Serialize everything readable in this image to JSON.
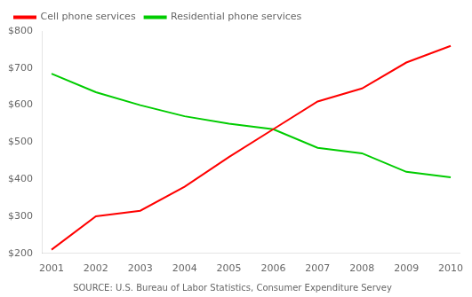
{
  "chart_data": {
    "type": "line",
    "x": [
      2001,
      2002,
      2003,
      2004,
      2005,
      2006,
      2007,
      2008,
      2009,
      2010
    ],
    "series": [
      {
        "name": "Cell phone services",
        "color": "#ff0000",
        "values": [
          210,
          300,
          315,
          380,
          460,
          535,
          610,
          645,
          715,
          760
        ]
      },
      {
        "name": "Residential phone services",
        "color": "#00cc00",
        "values": [
          685,
          635,
          600,
          570,
          550,
          535,
          485,
          470,
          420,
          405
        ]
      }
    ],
    "xlim": [
      2000.8,
      2010.2
    ],
    "xticks": [
      2001,
      2002,
      2003,
      2004,
      2005,
      2006,
      2007,
      2008,
      2009,
      2010
    ],
    "ylim": [
      200,
      800
    ],
    "yticks": [
      {
        "value": 200,
        "label": "$200"
      },
      {
        "value": 300,
        "label": "$300"
      },
      {
        "value": 400,
        "label": "$400"
      },
      {
        "value": 500,
        "label": "$500"
      },
      {
        "value": 600,
        "label": "$600"
      },
      {
        "value": 700,
        "label": "$700"
      },
      {
        "value": 800,
        "label": "$800"
      }
    ],
    "grid": false,
    "legend": "upper left",
    "annotations": [
      "SOURCE: U.S. Bureau of Labor Statistics, Consumer Expenditure Servey"
    ]
  }
}
